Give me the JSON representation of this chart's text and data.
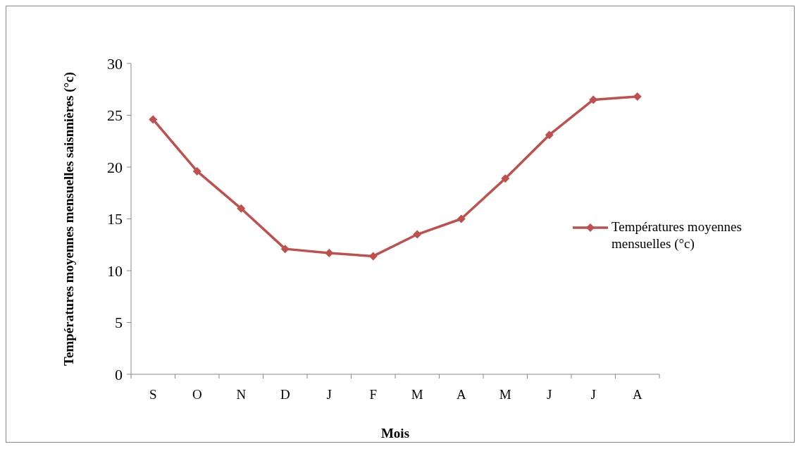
{
  "chart_data": {
    "type": "line",
    "xlabel": "Mois",
    "ylabel": "Températures moyennes mensuelles saisnnières (°c)",
    "categories": [
      "S",
      "O",
      "N",
      "D",
      "J",
      "F",
      "M",
      "A",
      "M",
      "J",
      "J",
      "A"
    ],
    "series": [
      {
        "name": "Températures moyennes mensuelles (°c)",
        "color": "#c0504d",
        "values": [
          24.6,
          19.6,
          16.0,
          12.1,
          11.7,
          11.4,
          13.5,
          15.0,
          18.9,
          23.1,
          26.5,
          26.8
        ]
      }
    ],
    "ylim": [
      0,
      30
    ],
    "yticks": [
      0,
      5,
      10,
      15,
      20,
      25,
      30
    ],
    "grid": false,
    "legend": "right",
    "marker": "diamond",
    "line_style": "solid"
  }
}
